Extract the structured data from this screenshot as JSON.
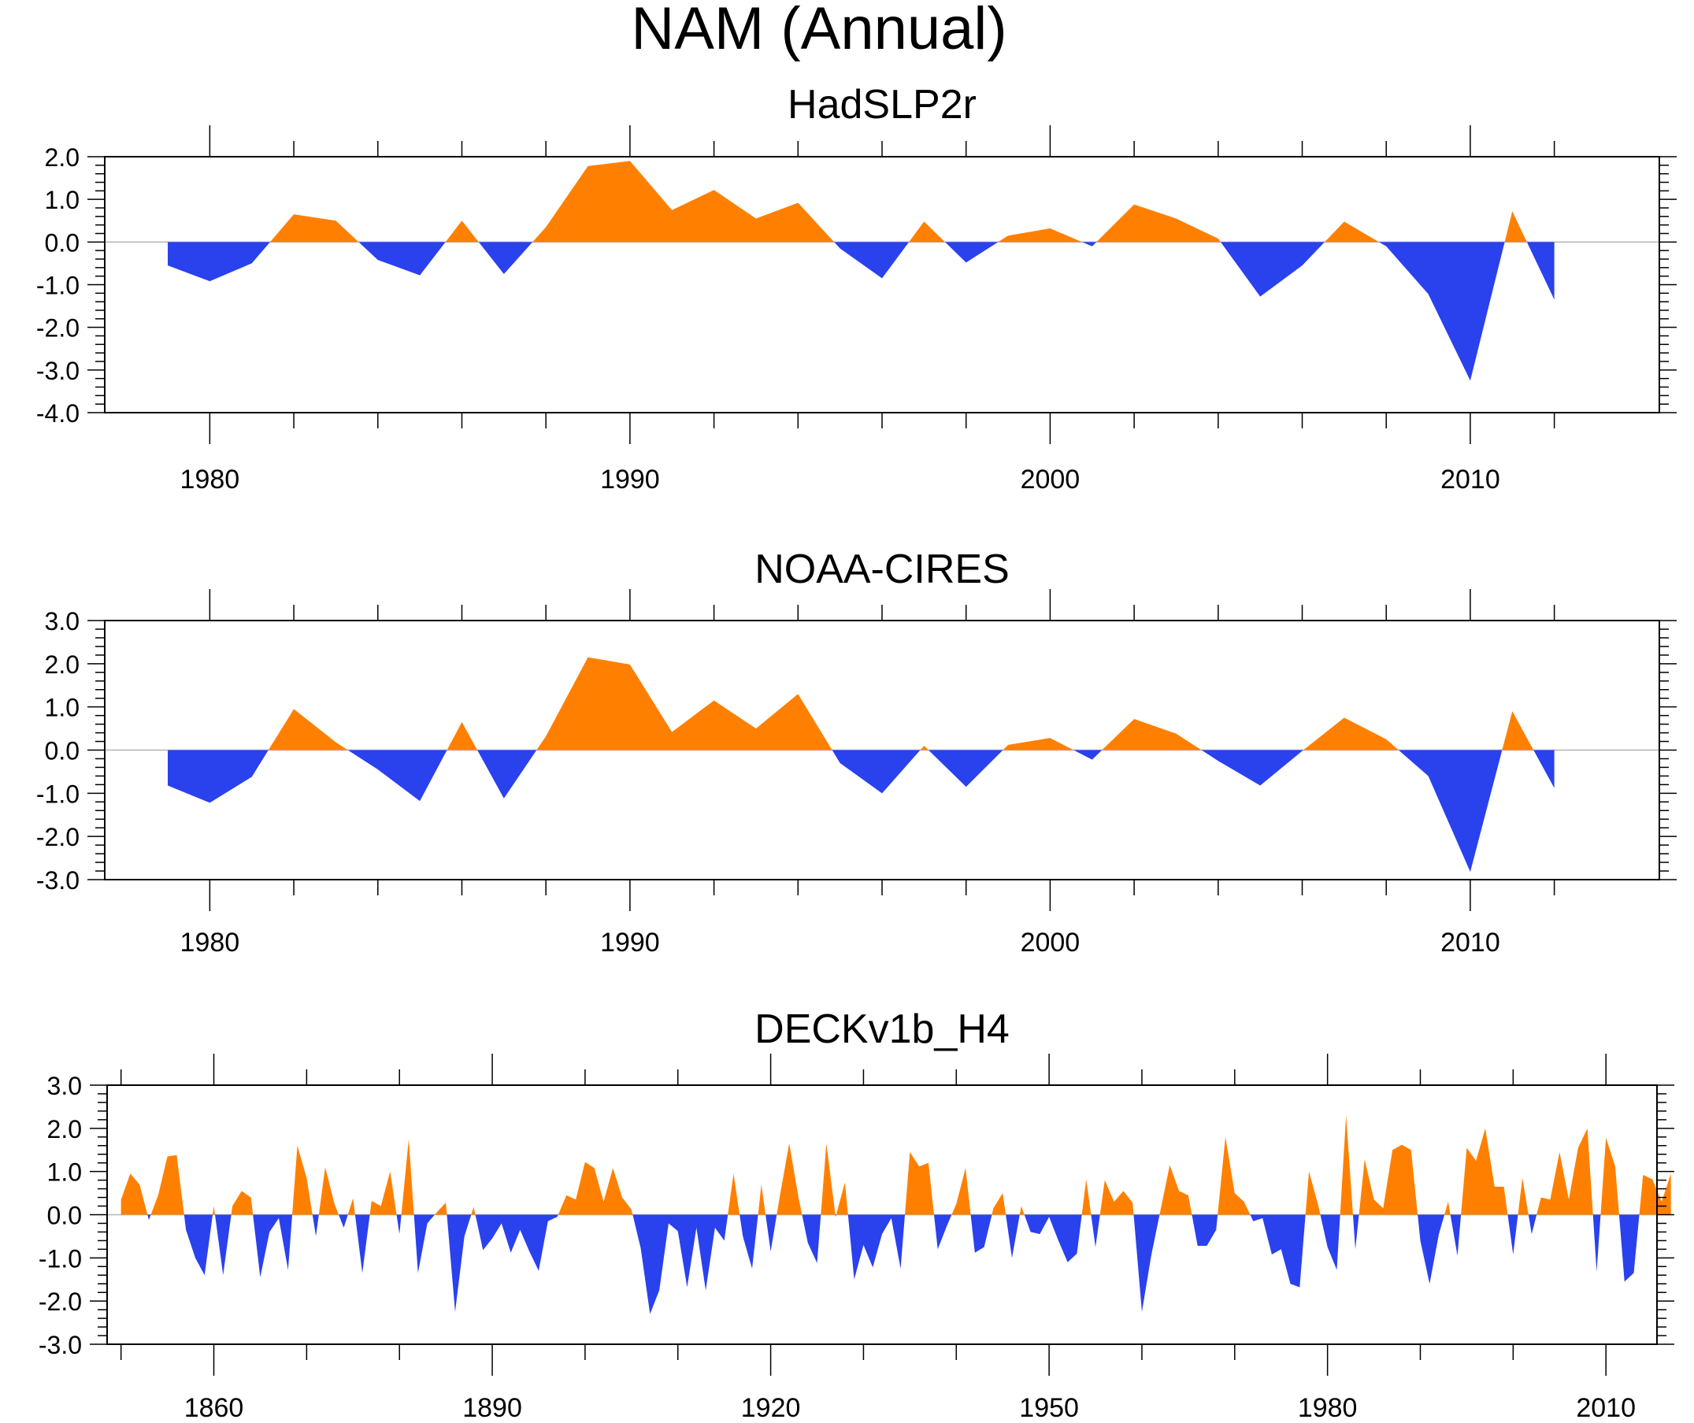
{
  "page_title": "NAM (Annual)",
  "colors": {
    "positive": "#ff8000",
    "negative": "#2a41ee",
    "axis": "#000000",
    "zero_line": "#b4b4b4"
  },
  "chart_data": [
    {
      "type": "area",
      "title": "HadSLP2r",
      "xlim": [
        1977.5,
        2014.5
      ],
      "ylim": [
        -4.0,
        2.0
      ],
      "x_ticks": [
        1980,
        1990,
        2000,
        2010
      ],
      "x_minor_ticks": [
        1982,
        1984,
        1986,
        1988,
        1992,
        1994,
        1996,
        1998,
        2002,
        2004,
        2006,
        2008,
        2012
      ],
      "y_ticks": [
        2.0,
        1.0,
        0.0,
        -1.0,
        -2.0,
        -3.0,
        -4.0
      ],
      "y_tick_labels": [
        "2.0",
        "1.0",
        "0.0",
        "-1.0",
        "-2.0",
        "-3.0",
        "-4.0"
      ],
      "x_tick_labels": [
        "1980",
        "1990",
        "2000",
        "2010"
      ],
      "x": [
        1979,
        1980,
        1981,
        1982,
        1983,
        1984,
        1985,
        1986,
        1987,
        1988,
        1989,
        1990,
        1991,
        1992,
        1993,
        1994,
        1995,
        1996,
        1997,
        1998,
        1999,
        2000,
        2001,
        2002,
        2003,
        2004,
        2005,
        2006,
        2007,
        2008,
        2009,
        2010,
        2011,
        2012
      ],
      "values": [
        -0.55,
        -0.92,
        -0.5,
        0.65,
        0.5,
        -0.42,
        -0.78,
        0.5,
        -0.75,
        0.35,
        1.78,
        1.9,
        0.75,
        1.22,
        0.55,
        0.92,
        -0.15,
        -0.85,
        0.48,
        -0.48,
        0.15,
        0.32,
        -0.1,
        0.88,
        0.55,
        0.08,
        -1.28,
        -0.55,
        0.48,
        -0.1,
        -1.22,
        -3.25,
        0.72,
        -1.35
      ]
    },
    {
      "type": "area",
      "title": "NOAA-CIRES",
      "xlim": [
        1977.5,
        2014.5
      ],
      "ylim": [
        -3.0,
        3.0
      ],
      "x_ticks": [
        1980,
        1990,
        2000,
        2010
      ],
      "x_minor_ticks": [
        1982,
        1984,
        1986,
        1988,
        1992,
        1994,
        1996,
        1998,
        2002,
        2004,
        2006,
        2008,
        2012
      ],
      "y_ticks": [
        3.0,
        2.0,
        1.0,
        0.0,
        -1.0,
        -2.0,
        -3.0
      ],
      "y_tick_labels": [
        "3.0",
        "2.0",
        "1.0",
        "0.0",
        "-1.0",
        "-2.0",
        "-3.0"
      ],
      "x_tick_labels": [
        "1980",
        "1990",
        "2000",
        "2010"
      ],
      "x": [
        1979,
        1980,
        1981,
        1982,
        1983,
        1984,
        1985,
        1986,
        1987,
        1988,
        1989,
        1990,
        1991,
        1992,
        1993,
        1994,
        1995,
        1996,
        1997,
        1998,
        1999,
        2000,
        2001,
        2002,
        2003,
        2004,
        2005,
        2006,
        2007,
        2008,
        2009,
        2010,
        2011,
        2012
      ],
      "values": [
        -0.82,
        -1.22,
        -0.62,
        0.95,
        0.18,
        -0.45,
        -1.18,
        0.65,
        -1.12,
        0.32,
        2.15,
        1.98,
        0.42,
        1.15,
        0.5,
        1.3,
        -0.3,
        -1.0,
        0.1,
        -0.85,
        0.12,
        0.28,
        -0.22,
        0.72,
        0.38,
        -0.25,
        -0.82,
        -0.02,
        0.75,
        0.25,
        -0.6,
        -2.82,
        0.9,
        -0.88
      ]
    },
    {
      "type": "area",
      "title": "DECKv1b_H4",
      "xlim": [
        1848.5,
        2015.5
      ],
      "ylim": [
        -3.0,
        3.0
      ],
      "x_ticks": [
        1860,
        1890,
        1920,
        1950,
        1980,
        2010
      ],
      "x_minor_ticks": [
        1850,
        1870,
        1880,
        1900,
        1910,
        1930,
        1940,
        1960,
        1970,
        1990,
        2000
      ],
      "y_ticks": [
        3.0,
        2.0,
        1.0,
        0.0,
        -1.0,
        -2.0,
        -3.0
      ],
      "y_tick_labels": [
        "3.0",
        "2.0",
        "1.0",
        "0.0",
        "-1.0",
        "-2.0",
        "-3.0"
      ],
      "x_tick_labels": [
        "1860",
        "1890",
        "1920",
        "1950",
        "1980",
        "2010"
      ],
      "x_start": 1850,
      "values": [
        0.35,
        0.95,
        0.7,
        -0.12,
        0.45,
        1.35,
        1.38,
        -0.35,
        -1.0,
        -1.4,
        0.2,
        -1.4,
        0.2,
        0.55,
        0.4,
        -1.45,
        -0.4,
        -0.08,
        -1.28,
        1.6,
        0.85,
        -0.5,
        1.1,
        0.25,
        -0.3,
        0.38,
        -1.35,
        0.32,
        0.2,
        1.0,
        -0.45,
        1.75,
        -1.35,
        -0.2,
        0.05,
        0.28,
        -2.25,
        -0.5,
        0.18,
        -0.82,
        -0.55,
        -0.2,
        -0.88,
        -0.35,
        -0.85,
        -1.3,
        -0.15,
        -0.05,
        0.45,
        0.35,
        1.22,
        1.08,
        0.3,
        1.08,
        0.4,
        0.12,
        -0.78,
        -2.3,
        -1.75,
        -0.2,
        -0.38,
        -1.68,
        -0.3,
        -1.75,
        -0.3,
        -0.6,
        0.95,
        -0.5,
        -1.25,
        0.7,
        -0.85,
        0.45,
        1.65,
        0.4,
        -0.65,
        -1.12,
        1.65,
        -0.05,
        0.75,
        -1.5,
        -0.7,
        -1.22,
        -0.45,
        -0.08,
        -1.25,
        1.45,
        1.12,
        1.2,
        -0.8,
        -0.25,
        0.25,
        1.08,
        -0.88,
        -0.75,
        0.15,
        0.5,
        -1.0,
        0.2,
        -0.4,
        -0.45,
        -0.05,
        -0.6,
        -1.1,
        -0.9,
        0.82,
        -0.75,
        0.8,
        0.3,
        0.55,
        0.28,
        -2.25,
        -0.95,
        0.1,
        1.15,
        0.55,
        0.45,
        -0.72,
        -0.72,
        -0.35,
        1.8,
        0.5,
        0.3,
        -0.15,
        -0.08,
        -0.92,
        -0.8,
        -1.6,
        -1.68,
        1.0,
        0.22,
        -0.75,
        -1.28,
        2.3,
        -0.8,
        1.28,
        0.35,
        0.15,
        1.5,
        1.62,
        1.5,
        -0.6,
        -1.6,
        -0.45,
        0.3,
        -0.95,
        1.55,
        1.25,
        2.0,
        0.65,
        0.65,
        -0.92,
        0.85,
        -0.45,
        0.4,
        0.35,
        1.45,
        0.35,
        1.55,
        2.0,
        -1.32,
        1.78,
        1.12,
        -1.55,
        -1.35,
        0.92,
        0.82,
        0.3,
        0.95
      ]
    }
  ]
}
